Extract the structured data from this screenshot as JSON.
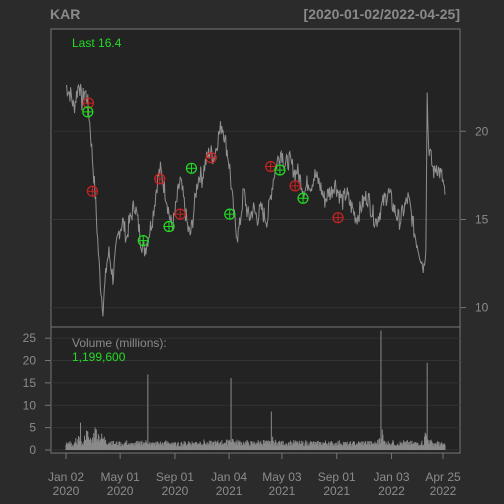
{
  "chart_data": {
    "type": "line",
    "symbol": "KAR",
    "date_range": "[2020-01-02/2022-04-25]",
    "last_label": "Last 16.4",
    "last_value": 16.4,
    "price_axis": {
      "ticks": [
        10,
        15,
        20
      ],
      "ylim": [
        8.9,
        25.8
      ]
    },
    "volume_axis": {
      "label": "Volume (millions):",
      "last_volume_text": "1,199,600",
      "ticks": [
        0,
        5,
        10,
        15,
        20,
        25
      ],
      "ylim": [
        0,
        27.5
      ]
    },
    "x_axis": {
      "ticks": [
        {
          "top": "Jan 02",
          "bottom": "2020",
          "x": 0
        },
        {
          "top": "May 01",
          "bottom": "2020",
          "x": 82
        },
        {
          "top": "Sep 01",
          "bottom": "2020",
          "x": 165
        },
        {
          "top": "Jan 04",
          "bottom": "2021",
          "x": 247
        },
        {
          "top": "May 03",
          "bottom": "2021",
          "x": 327
        },
        {
          "top": "Sep 01",
          "bottom": "2021",
          "x": 410
        },
        {
          "top": "Jan 03",
          "bottom": "2022",
          "x": 493
        },
        {
          "top": "Apr 25",
          "bottom": "2022",
          "x": 571
        }
      ],
      "xlim": [
        0,
        574
      ]
    },
    "price_series": [
      [
        0,
        22.6
      ],
      [
        4,
        22.3
      ],
      [
        8,
        22.0
      ],
      [
        12,
        21.3
      ],
      [
        16,
        22.1
      ],
      [
        20,
        22.8
      ],
      [
        24,
        21.6
      ],
      [
        28,
        22.3
      ],
      [
        32,
        21.9
      ],
      [
        35,
        20.9
      ],
      [
        38,
        19.5
      ],
      [
        41,
        18.0
      ],
      [
        44,
        16.5
      ],
      [
        47,
        14.5
      ],
      [
        50,
        12.5
      ],
      [
        53,
        11.0
      ],
      [
        56,
        10.0
      ],
      [
        59,
        11.3
      ],
      [
        62,
        12.6
      ],
      [
        65,
        13.1
      ],
      [
        68,
        12.4
      ],
      [
        71,
        11.7
      ],
      [
        74,
        12.6
      ],
      [
        77,
        13.6
      ],
      [
        80,
        14.3
      ],
      [
        83,
        14.6
      ],
      [
        86,
        14.9
      ],
      [
        89,
        14.4
      ],
      [
        92,
        13.9
      ],
      [
        95,
        14.7
      ],
      [
        98,
        15.1
      ],
      [
        101,
        15.5
      ],
      [
        104,
        15.9
      ],
      [
        107,
        15.3
      ],
      [
        110,
        14.6
      ],
      [
        113,
        13.9
      ],
      [
        116,
        13.5
      ],
      [
        119,
        13.3
      ],
      [
        122,
        13.6
      ],
      [
        125,
        14.1
      ],
      [
        128,
        14.6
      ],
      [
        131,
        15.1
      ],
      [
        134,
        15.9
      ],
      [
        137,
        16.8
      ],
      [
        140,
        17.5
      ],
      [
        143,
        17.8
      ],
      [
        146,
        17.3
      ],
      [
        149,
        16.8
      ],
      [
        152,
        16.3
      ],
      [
        155,
        15.6
      ],
      [
        158,
        14.9
      ],
      [
        161,
        14.6
      ],
      [
        164,
        15.1
      ],
      [
        167,
        15.8
      ],
      [
        170,
        16.6
      ],
      [
        173,
        17.2
      ],
      [
        176,
        16.6
      ],
      [
        179,
        15.9
      ],
      [
        182,
        15.1
      ],
      [
        185,
        14.4
      ],
      [
        188,
        14.1
      ],
      [
        191,
        14.7
      ],
      [
        194,
        15.6
      ],
      [
        197,
        16.6
      ],
      [
        200,
        17.3
      ],
      [
        203,
        17.6
      ],
      [
        206,
        17.3
      ],
      [
        209,
        17.9
      ],
      [
        212,
        18.3
      ],
      [
        215,
        18.6
      ],
      [
        218,
        18.9
      ],
      [
        221,
        18.7
      ],
      [
        224,
        18.5
      ],
      [
        227,
        19.0
      ],
      [
        230,
        19.6
      ],
      [
        233,
        20.0
      ],
      [
        236,
        20.4
      ],
      [
        239,
        20.0
      ],
      [
        242,
        19.3
      ],
      [
        245,
        18.7
      ],
      [
        248,
        17.9
      ],
      [
        251,
        16.6
      ],
      [
        254,
        15.3
      ],
      [
        257,
        14.6
      ],
      [
        260,
        14.1
      ],
      [
        263,
        14.6
      ],
      [
        266,
        15.6
      ],
      [
        269,
        16.6
      ],
      [
        272,
        16.0
      ],
      [
        275,
        15.3
      ],
      [
        278,
        15.1
      ],
      [
        281,
        15.4
      ],
      [
        284,
        15.6
      ],
      [
        287,
        15.3
      ],
      [
        290,
        15.1
      ],
      [
        293,
        15.4
      ],
      [
        296,
        15.6
      ],
      [
        299,
        15.3
      ],
      [
        302,
        15.1
      ],
      [
        305,
        15.0
      ],
      [
        308,
        15.8
      ],
      [
        311,
        16.6
      ],
      [
        314,
        17.3
      ],
      [
        317,
        17.9
      ],
      [
        320,
        18.3
      ],
      [
        323,
        18.6
      ],
      [
        326,
        18.9
      ],
      [
        329,
        18.5
      ],
      [
        332,
        18.1
      ],
      [
        335,
        18.2
      ],
      [
        338,
        18.4
      ],
      [
        341,
        18.1
      ],
      [
        344,
        17.9
      ],
      [
        347,
        17.6
      ],
      [
        350,
        17.8
      ],
      [
        353,
        17.4
      ],
      [
        356,
        17.2
      ],
      [
        359,
        16.8
      ],
      [
        362,
        16.6
      ],
      [
        365,
        17.0
      ],
      [
        368,
        17.2
      ],
      [
        371,
        16.9
      ],
      [
        374,
        17.3
      ],
      [
        377,
        17.5
      ],
      [
        380,
        17.3
      ],
      [
        383,
        17.1
      ],
      [
        386,
        16.8
      ],
      [
        389,
        16.4
      ],
      [
        392,
        16.1
      ],
      [
        395,
        16.3
      ],
      [
        398,
        16.6
      ],
      [
        401,
        16.5
      ],
      [
        404,
        16.8
      ],
      [
        407,
        17.1
      ],
      [
        410,
        16.8
      ],
      [
        413,
        16.5
      ],
      [
        416,
        16.3
      ],
      [
        419,
        16.0
      ],
      [
        422,
        16.3
      ],
      [
        425,
        16.5
      ],
      [
        428,
        16.1
      ],
      [
        431,
        15.8
      ],
      [
        434,
        15.6
      ],
      [
        437,
        15.3
      ],
      [
        440,
        15.1
      ],
      [
        443,
        15.3
      ],
      [
        446,
        15.6
      ],
      [
        449,
        15.9
      ],
      [
        452,
        16.1
      ],
      [
        455,
        16.3
      ],
      [
        458,
        16.2
      ],
      [
        461,
        15.8
      ],
      [
        464,
        15.4
      ],
      [
        467,
        15.1
      ],
      [
        470,
        14.9
      ],
      [
        473,
        15.2
      ],
      [
        476,
        15.5
      ],
      [
        479,
        15.8
      ],
      [
        482,
        16.1
      ],
      [
        485,
        16.3
      ],
      [
        488,
        16.6
      ],
      [
        491,
        16.3
      ],
      [
        494,
        15.9
      ],
      [
        497,
        15.6
      ],
      [
        500,
        15.3
      ],
      [
        503,
        15.1
      ],
      [
        506,
        14.9
      ],
      [
        509,
        15.3
      ],
      [
        512,
        15.6
      ],
      [
        515,
        15.9
      ],
      [
        518,
        16.2
      ],
      [
        521,
        15.7
      ],
      [
        524,
        15.1
      ],
      [
        527,
        14.4
      ],
      [
        530,
        13.9
      ],
      [
        533,
        13.5
      ],
      [
        536,
        13.1
      ],
      [
        539,
        12.6
      ],
      [
        542,
        12.3
      ],
      [
        545,
        13.6
      ],
      [
        547,
        22.1
      ],
      [
        549,
        19.3
      ],
      [
        552,
        18.6
      ],
      [
        555,
        18.0
      ],
      [
        558,
        17.6
      ],
      [
        561,
        18.1
      ],
      [
        564,
        17.8
      ],
      [
        567,
        17.6
      ],
      [
        570,
        17.3
      ],
      [
        572,
        16.9
      ],
      [
        574,
        16.4
      ]
    ],
    "volume_series": [
      [
        0,
        1.2
      ],
      [
        6,
        2.0
      ],
      [
        10,
        1.1
      ],
      [
        14,
        1.8
      ],
      [
        18,
        2.4
      ],
      [
        22,
        6.1
      ],
      [
        25,
        1.4
      ],
      [
        28,
        3.2
      ],
      [
        33,
        4.1
      ],
      [
        38,
        2.2
      ],
      [
        42,
        3.8
      ],
      [
        46,
        4.6
      ],
      [
        50,
        3.1
      ],
      [
        55,
        2.6
      ],
      [
        60,
        2.3
      ],
      [
        65,
        1.7
      ],
      [
        70,
        2.0
      ],
      [
        75,
        1.4
      ],
      [
        80,
        1.8
      ],
      [
        85,
        1.3
      ],
      [
        90,
        1.9
      ],
      [
        95,
        1.5
      ],
      [
        100,
        1.2
      ],
      [
        105,
        1.7
      ],
      [
        110,
        1.4
      ],
      [
        115,
        2.1
      ],
      [
        120,
        1.6
      ],
      [
        124,
        16.9
      ],
      [
        127,
        1.8
      ],
      [
        132,
        1.3
      ],
      [
        138,
        1.9
      ],
      [
        144,
        1.4
      ],
      [
        150,
        1.8
      ],
      [
        156,
        1.5
      ],
      [
        162,
        1.7
      ],
      [
        168,
        1.2
      ],
      [
        174,
        1.6
      ],
      [
        180,
        1.4
      ],
      [
        186,
        2.0
      ],
      [
        192,
        1.5
      ],
      [
        198,
        1.8
      ],
      [
        204,
        1.6
      ],
      [
        210,
        1.9
      ],
      [
        216,
        1.4
      ],
      [
        222,
        1.7
      ],
      [
        228,
        1.5
      ],
      [
        234,
        1.8
      ],
      [
        240,
        1.6
      ],
      [
        246,
        2.1
      ],
      [
        250,
        16.1
      ],
      [
        253,
        2.4
      ],
      [
        258,
        1.6
      ],
      [
        264,
        1.9
      ],
      [
        270,
        1.5
      ],
      [
        276,
        1.8
      ],
      [
        282,
        1.4
      ],
      [
        288,
        1.7
      ],
      [
        294,
        1.6
      ],
      [
        300,
        2.2
      ],
      [
        306,
        1.5
      ],
      [
        311,
        8.6
      ],
      [
        314,
        2.0
      ],
      [
        320,
        1.6
      ],
      [
        326,
        1.8
      ],
      [
        332,
        1.4
      ],
      [
        338,
        1.7
      ],
      [
        344,
        1.5
      ],
      [
        350,
        1.9
      ],
      [
        356,
        1.4
      ],
      [
        362,
        1.6
      ],
      [
        368,
        1.5
      ],
      [
        374,
        1.8
      ],
      [
        380,
        1.4
      ],
      [
        386,
        1.7
      ],
      [
        392,
        1.5
      ],
      [
        398,
        1.9
      ],
      [
        404,
        1.4
      ],
      [
        410,
        1.6
      ],
      [
        416,
        1.5
      ],
      [
        422,
        1.8
      ],
      [
        428,
        1.3
      ],
      [
        434,
        1.6
      ],
      [
        440,
        1.4
      ],
      [
        446,
        1.7
      ],
      [
        452,
        1.5
      ],
      [
        458,
        1.9
      ],
      [
        464,
        1.4
      ],
      [
        470,
        1.6
      ],
      [
        474,
        2.5
      ],
      [
        477,
        26.7
      ],
      [
        480,
        3.4
      ],
      [
        485,
        1.7
      ],
      [
        490,
        1.5
      ],
      [
        496,
        1.9
      ],
      [
        502,
        1.4
      ],
      [
        508,
        1.6
      ],
      [
        514,
        1.5
      ],
      [
        520,
        1.8
      ],
      [
        526,
        1.4
      ],
      [
        532,
        1.6
      ],
      [
        538,
        1.5
      ],
      [
        543,
        3.0
      ],
      [
        547,
        19.5
      ],
      [
        550,
        2.2
      ],
      [
        555,
        1.6
      ],
      [
        560,
        1.4
      ],
      [
        565,
        1.8
      ],
      [
        570,
        1.2
      ],
      [
        574,
        1.2
      ]
    ],
    "markers": {
      "red": [
        [
          34,
          21.6
        ],
        [
          40,
          16.6
        ],
        [
          142,
          17.3
        ],
        [
          173,
          15.3
        ],
        [
          220,
          18.5
        ],
        [
          310,
          18.0
        ],
        [
          347,
          16.9
        ],
        [
          412,
          15.1
        ]
      ],
      "green": [
        [
          33,
          21.1
        ],
        [
          117,
          13.8
        ],
        [
          156,
          14.6
        ],
        [
          190,
          17.9
        ],
        [
          248,
          15.3
        ],
        [
          324,
          17.8
        ],
        [
          359,
          16.2
        ]
      ]
    }
  }
}
